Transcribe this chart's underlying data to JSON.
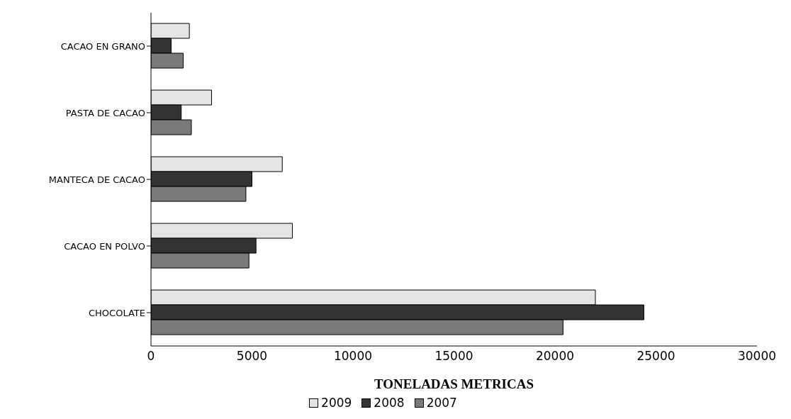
{
  "chart_data": {
    "type": "bar",
    "orientation": "horizontal",
    "xlabel": "TONELADAS METRICAS",
    "categories": [
      "CACAO EN GRANO",
      "PASTA DE CACAO",
      "MANTECA  DE CACAO",
      "CACAO EN POLVO",
      "CHOCOLATE"
    ],
    "series": [
      {
        "name": "2009",
        "color": "#e4e4e4",
        "values": [
          1900,
          3000,
          6500,
          7000,
          22000
        ]
      },
      {
        "name": "2008",
        "color": "#333333",
        "values": [
          1000,
          1500,
          5000,
          5200,
          24400
        ]
      },
      {
        "name": "2007",
        "color": "#7a7a7a",
        "values": [
          1600,
          2000,
          4700,
          4850,
          20400
        ]
      }
    ],
    "xlim": [
      0,
      30000
    ],
    "xticks": [
      0,
      5000,
      10000,
      15000,
      20000,
      25000,
      30000
    ],
    "grid": false,
    "legend": "bottom"
  }
}
